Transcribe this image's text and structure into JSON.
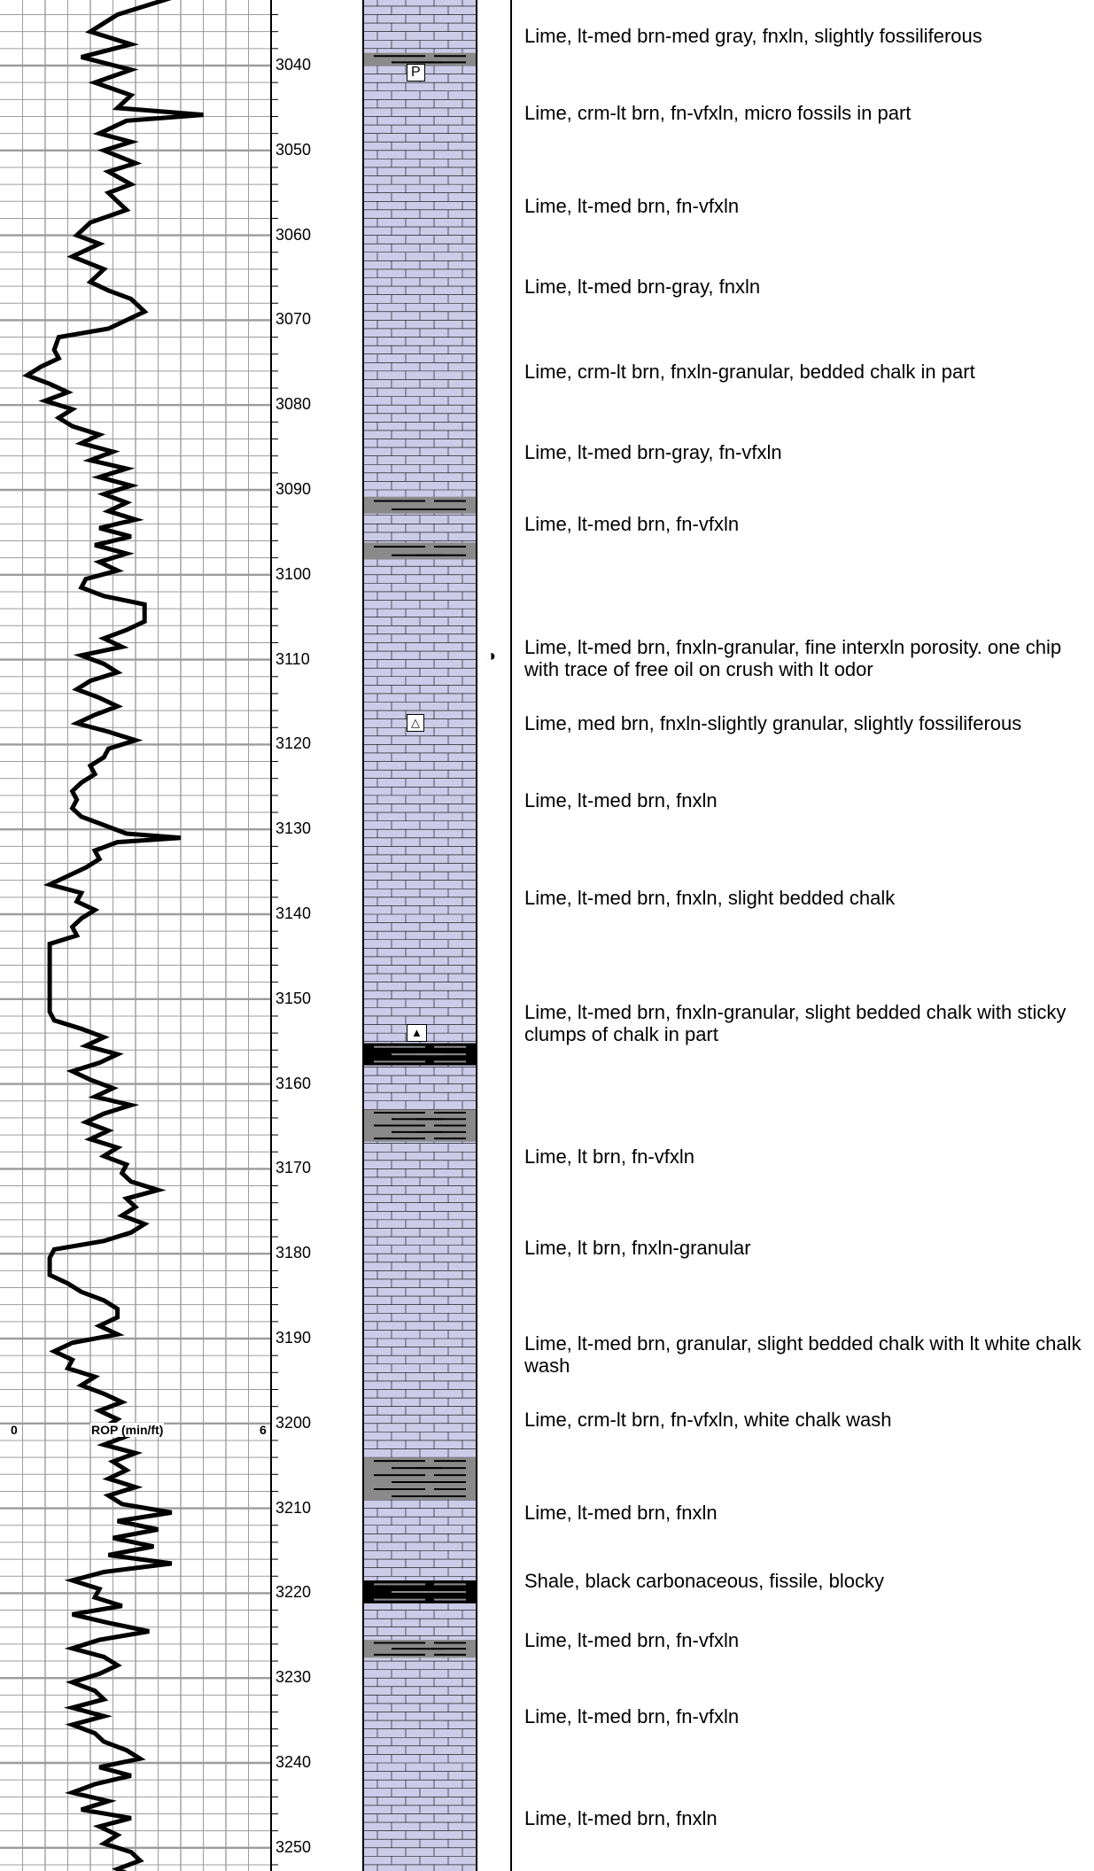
{
  "log": {
    "depth_range": [
      3032,
      3253
    ],
    "depth_labels": [
      3040,
      3050,
      3060,
      3070,
      3080,
      3090,
      3100,
      3110,
      3120,
      3130,
      3140,
      3150,
      3160,
      3170,
      3180,
      3190,
      3200,
      3210,
      3220,
      3230,
      3240,
      3250
    ],
    "rop_track": {
      "min_label": "0",
      "title": "ROP (min/ft)",
      "max_label": "6",
      "scale": [
        0,
        6
      ],
      "line_color": "#000000",
      "grid_color": "#9c9c9c",
      "curve": [
        [
          3032,
          3.8
        ],
        [
          3034,
          2.6
        ],
        [
          3036,
          2.0
        ],
        [
          3037.5,
          2.9
        ],
        [
          3039,
          1.8
        ],
        [
          3040.5,
          2.9
        ],
        [
          3042,
          2.1
        ],
        [
          3043.5,
          2.9
        ],
        [
          3045,
          2.6
        ],
        [
          3045.8,
          4.5
        ],
        [
          3046.5,
          2.8
        ],
        [
          3048,
          2.2
        ],
        [
          3049,
          2.9
        ],
        [
          3050,
          2.3
        ],
        [
          3051.5,
          3.0
        ],
        [
          3052.5,
          2.4
        ],
        [
          3054,
          2.9
        ],
        [
          3055,
          2.4
        ],
        [
          3057,
          2.8
        ],
        [
          3058.5,
          2.0
        ],
        [
          3060,
          1.7
        ],
        [
          3061,
          2.2
        ],
        [
          3062.5,
          1.6
        ],
        [
          3064,
          2.3
        ],
        [
          3065.5,
          2.0
        ],
        [
          3066.5,
          2.4
        ],
        [
          3067.5,
          2.9
        ],
        [
          3069,
          3.2
        ],
        [
          3070,
          2.8
        ],
        [
          3071,
          2.4
        ],
        [
          3072,
          1.3
        ],
        [
          3073.5,
          1.2
        ],
        [
          3074.5,
          1.3
        ],
        [
          3075.5,
          0.9
        ],
        [
          3076.5,
          0.6
        ],
        [
          3077.5,
          1.1
        ],
        [
          3078.5,
          1.5
        ],
        [
          3079.5,
          1.0
        ],
        [
          3080.5,
          1.6
        ],
        [
          3081.5,
          1.3
        ],
        [
          3082.5,
          1.6
        ],
        [
          3083.5,
          2.2
        ],
        [
          3084.5,
          1.8
        ],
        [
          3085.5,
          2.5
        ],
        [
          3086.5,
          2.0
        ],
        [
          3087.5,
          2.8
        ],
        [
          3088.5,
          2.2
        ],
        [
          3089.5,
          2.9
        ],
        [
          3090.5,
          2.3
        ],
        [
          3091.5,
          2.8
        ],
        [
          3092.5,
          2.4
        ],
        [
          3093.5,
          3.0
        ],
        [
          3094.5,
          2.2
        ],
        [
          3095.5,
          2.9
        ],
        [
          3096.5,
          2.1
        ],
        [
          3097.5,
          2.8
        ],
        [
          3098.5,
          2.2
        ],
        [
          3099.5,
          2.6
        ],
        [
          3100.5,
          1.9
        ],
        [
          3101.5,
          1.8
        ],
        [
          3102.5,
          2.3
        ],
        [
          3103.5,
          3.2
        ],
        [
          3104.5,
          3.2
        ],
        [
          3105.5,
          3.2
        ],
        [
          3106.5,
          2.8
        ],
        [
          3107.5,
          2.3
        ],
        [
          3108.5,
          2.7
        ],
        [
          3109.5,
          1.8
        ],
        [
          3110.5,
          2.3
        ],
        [
          3111.5,
          2.6
        ],
        [
          3112.5,
          2.0
        ],
        [
          3113.5,
          1.7
        ],
        [
          3114.5,
          2.2
        ],
        [
          3115.5,
          2.6
        ],
        [
          3116.5,
          2.1
        ],
        [
          3117.5,
          1.7
        ],
        [
          3118.5,
          2.4
        ],
        [
          3119.5,
          3.0
        ],
        [
          3120.5,
          2.4
        ],
        [
          3121.5,
          2.3
        ],
        [
          3122.5,
          2.0
        ],
        [
          3123.5,
          2.1
        ],
        [
          3124.5,
          1.8
        ],
        [
          3125.5,
          1.6
        ],
        [
          3126.5,
          1.7
        ],
        [
          3127.5,
          1.6
        ],
        [
          3128.5,
          1.8
        ],
        [
          3129.5,
          2.3
        ],
        [
          3130.5,
          2.8
        ],
        [
          3131,
          4.0
        ],
        [
          3131.5,
          2.6
        ],
        [
          3132.5,
          2.1
        ],
        [
          3133.5,
          2.2
        ],
        [
          3134.5,
          1.9
        ],
        [
          3135.5,
          1.5
        ],
        [
          3136.5,
          1.1
        ],
        [
          3137.5,
          1.8
        ],
        [
          3138.5,
          1.7
        ],
        [
          3139.5,
          2.1
        ],
        [
          3140.5,
          1.8
        ],
        [
          3141.5,
          1.6
        ],
        [
          3142.5,
          1.7
        ],
        [
          3143.5,
          1.1
        ],
        [
          3144.5,
          1.1
        ],
        [
          3145.5,
          1.1
        ],
        [
          3146.5,
          1.1
        ],
        [
          3147.5,
          1.1
        ],
        [
          3148.5,
          1.1
        ],
        [
          3149.5,
          1.1
        ],
        [
          3150.5,
          1.1
        ],
        [
          3151.5,
          1.1
        ],
        [
          3152.5,
          1.2
        ],
        [
          3153.5,
          1.8
        ],
        [
          3154.5,
          2.3
        ],
        [
          3155.5,
          1.9
        ],
        [
          3156.5,
          2.6
        ],
        [
          3157.5,
          2.2
        ],
        [
          3158.5,
          1.6
        ],
        [
          3159.5,
          2.0
        ],
        [
          3160.5,
          2.5
        ],
        [
          3161.5,
          2.1
        ],
        [
          3162.5,
          2.9
        ],
        [
          3163.5,
          2.3
        ],
        [
          3164.5,
          1.9
        ],
        [
          3165.5,
          2.4
        ],
        [
          3166.5,
          2.0
        ],
        [
          3167.5,
          2.6
        ],
        [
          3168.5,
          2.3
        ],
        [
          3169.5,
          2.8
        ],
        [
          3170.5,
          2.7
        ],
        [
          3171.5,
          2.9
        ],
        [
          3172.5,
          3.5
        ],
        [
          3173.5,
          2.8
        ],
        [
          3174.5,
          3.0
        ],
        [
          3175.5,
          2.7
        ],
        [
          3176.5,
          3.2
        ],
        [
          3177.5,
          2.9
        ],
        [
          3178.5,
          2.3
        ],
        [
          3179.5,
          1.2
        ],
        [
          3180.5,
          1.1
        ],
        [
          3181.5,
          1.1
        ],
        [
          3182.5,
          1.1
        ],
        [
          3183.5,
          1.5
        ],
        [
          3184.5,
          1.8
        ],
        [
          3185.5,
          2.3
        ],
        [
          3186.5,
          2.6
        ],
        [
          3187.5,
          2.6
        ],
        [
          3188.5,
          2.2
        ],
        [
          3189.5,
          2.6
        ],
        [
          3190.5,
          1.6
        ],
        [
          3191.5,
          1.2
        ],
        [
          3192.5,
          1.6
        ],
        [
          3193.5,
          1.5
        ],
        [
          3194.5,
          2.1
        ],
        [
          3195.5,
          1.8
        ],
        [
          3196.5,
          2.3
        ],
        [
          3197.5,
          2.7
        ],
        [
          3198.5,
          2.2
        ],
        [
          3199.5,
          2.6
        ],
        [
          3200.5,
          2.3
        ],
        [
          3201.5,
          2.8
        ],
        [
          3202.5,
          2.3
        ],
        [
          3203.5,
          3.0
        ],
        [
          3204.5,
          2.5
        ],
        [
          3205.5,
          2.8
        ],
        [
          3206.5,
          2.4
        ],
        [
          3207.5,
          3.0
        ],
        [
          3208.5,
          2.4
        ],
        [
          3209.5,
          2.7
        ],
        [
          3210.5,
          3.8
        ],
        [
          3211.5,
          2.6
        ],
        [
          3212.5,
          3.5
        ],
        [
          3213.5,
          2.5
        ],
        [
          3214.5,
          3.4
        ],
        [
          3215.5,
          2.4
        ],
        [
          3216.5,
          3.8
        ],
        [
          3217.5,
          2.3
        ],
        [
          3218.5,
          1.6
        ],
        [
          3219.5,
          2.2
        ],
        [
          3220.5,
          2.1
        ],
        [
          3221.5,
          2.7
        ],
        [
          3222.5,
          1.6
        ],
        [
          3223.5,
          2.4
        ],
        [
          3224.5,
          3.3
        ],
        [
          3225.5,
          2.2
        ],
        [
          3226.5,
          1.6
        ],
        [
          3227.5,
          2.3
        ],
        [
          3228.5,
          2.6
        ],
        [
          3229.5,
          2.2
        ],
        [
          3230.5,
          1.6
        ],
        [
          3231.5,
          2.1
        ],
        [
          3232.5,
          2.3
        ],
        [
          3233.5,
          1.6
        ],
        [
          3234.5,
          2.3
        ],
        [
          3235.5,
          1.6
        ],
        [
          3236.5,
          2.1
        ],
        [
          3237.5,
          2.3
        ],
        [
          3238.5,
          2.8
        ],
        [
          3239.5,
          3.1
        ],
        [
          3240.5,
          2.2
        ],
        [
          3241.5,
          2.9
        ],
        [
          3242.5,
          2.1
        ],
        [
          3243.5,
          1.6
        ],
        [
          3244.5,
          2.4
        ],
        [
          3245.5,
          1.8
        ],
        [
          3246.5,
          2.9
        ],
        [
          3247.5,
          2.2
        ],
        [
          3248.5,
          2.6
        ],
        [
          3249.5,
          2.3
        ],
        [
          3250.5,
          2.9
        ],
        [
          3251.5,
          3.1
        ],
        [
          3252.5,
          2.6
        ],
        [
          3253,
          2.8
        ]
      ]
    },
    "lithology": {
      "limestone_color": "#cccce8",
      "shale_gray_color": "#8a8a8a",
      "shale_black_color": "#000000",
      "shale_beds": [
        {
          "top": 3038.5,
          "base": 3040.0,
          "kind": "gray"
        },
        {
          "top": 3090.8,
          "base": 3092.8,
          "kind": "gray"
        },
        {
          "top": 3096.2,
          "base": 3098.2,
          "kind": "gray"
        },
        {
          "top": 3155.2,
          "base": 3157.8,
          "kind": "black"
        },
        {
          "top": 3163.0,
          "base": 3166.8,
          "kind": "gray"
        },
        {
          "top": 3204.0,
          "base": 3209.0,
          "kind": "gray"
        },
        {
          "top": 3218.5,
          "base": 3221.2,
          "kind": "black"
        },
        {
          "top": 3225.5,
          "base": 3227.6,
          "kind": "gray"
        }
      ],
      "symbols": [
        {
          "depth": 3040.8,
          "glyph": "P",
          "name": "p-symbol"
        },
        {
          "depth": 3117.5,
          "glyph": "△",
          "name": "triangle-outline-icon"
        },
        {
          "depth": 3154.0,
          "glyph": "▲",
          "name": "triangle-filled-icon"
        },
        {
          "depth": 3109.5,
          "glyph": "◑",
          "name": "oil-show-icon"
        }
      ]
    },
    "descriptions": [
      {
        "depth": 3036.5,
        "text": "Lime, lt-med brn-med gray, fnxln, slightly fossiliferous"
      },
      {
        "depth": 3045.5,
        "text": "Lime, crm-lt brn, fn-vfxln, micro fossils in part"
      },
      {
        "depth": 3056.5,
        "text": "Lime, lt-med brn, fn-vfxln"
      },
      {
        "depth": 3066.0,
        "text": "Lime, lt-med brn-gray, fnxln"
      },
      {
        "depth": 3076.0,
        "text": "Lime, crm-lt brn, fnxln-granular, bedded chalk in part"
      },
      {
        "depth": 3085.5,
        "text": "Lime, lt-med brn-gray, fn-vfxln"
      },
      {
        "depth": 3094.0,
        "text": "Lime, lt-med brn, fn-vfxln"
      },
      {
        "depth": 3108.5,
        "text": "Lime, lt-med brn, fnxln-granular, fine interxln porosity. one chip with trace of free oil on crush with lt odor"
      },
      {
        "depth": 3117.5,
        "text": "Lime, med brn, fnxln-slightly granular, slightly fossiliferous"
      },
      {
        "depth": 3126.5,
        "text": "Lime, lt-med brn, fnxln"
      },
      {
        "depth": 3138.0,
        "text": "Lime, lt-med brn, fnxln, slight bedded chalk"
      },
      {
        "depth": 3151.5,
        "text": "Lime, lt-med brn, fnxln-granular, slight bedded chalk with sticky clumps of chalk in part"
      },
      {
        "depth": 3168.5,
        "text": "Lime, lt brn, fn-vfxln"
      },
      {
        "depth": 3179.2,
        "text": "Lime, lt brn, fnxln-granular"
      },
      {
        "depth": 3190.5,
        "text": "Lime, lt-med brn, granular, slight bedded chalk with lt white chalk wash"
      },
      {
        "depth": 3199.5,
        "text": "Lime, crm-lt brn, fn-vfxln, white chalk wash"
      },
      {
        "depth": 3210.5,
        "text": "Lime, lt-med brn, fnxln"
      },
      {
        "depth": 3218.5,
        "text": "Shale, black carbonaceous, fissile, blocky"
      },
      {
        "depth": 3225.5,
        "text": "Lime, lt-med brn, fn-vfxln"
      },
      {
        "depth": 3234.5,
        "text": "Lime, lt-med brn, fn-vfxln"
      },
      {
        "depth": 3246.5,
        "text": "Lime, lt-med brn, fnxln"
      }
    ]
  }
}
